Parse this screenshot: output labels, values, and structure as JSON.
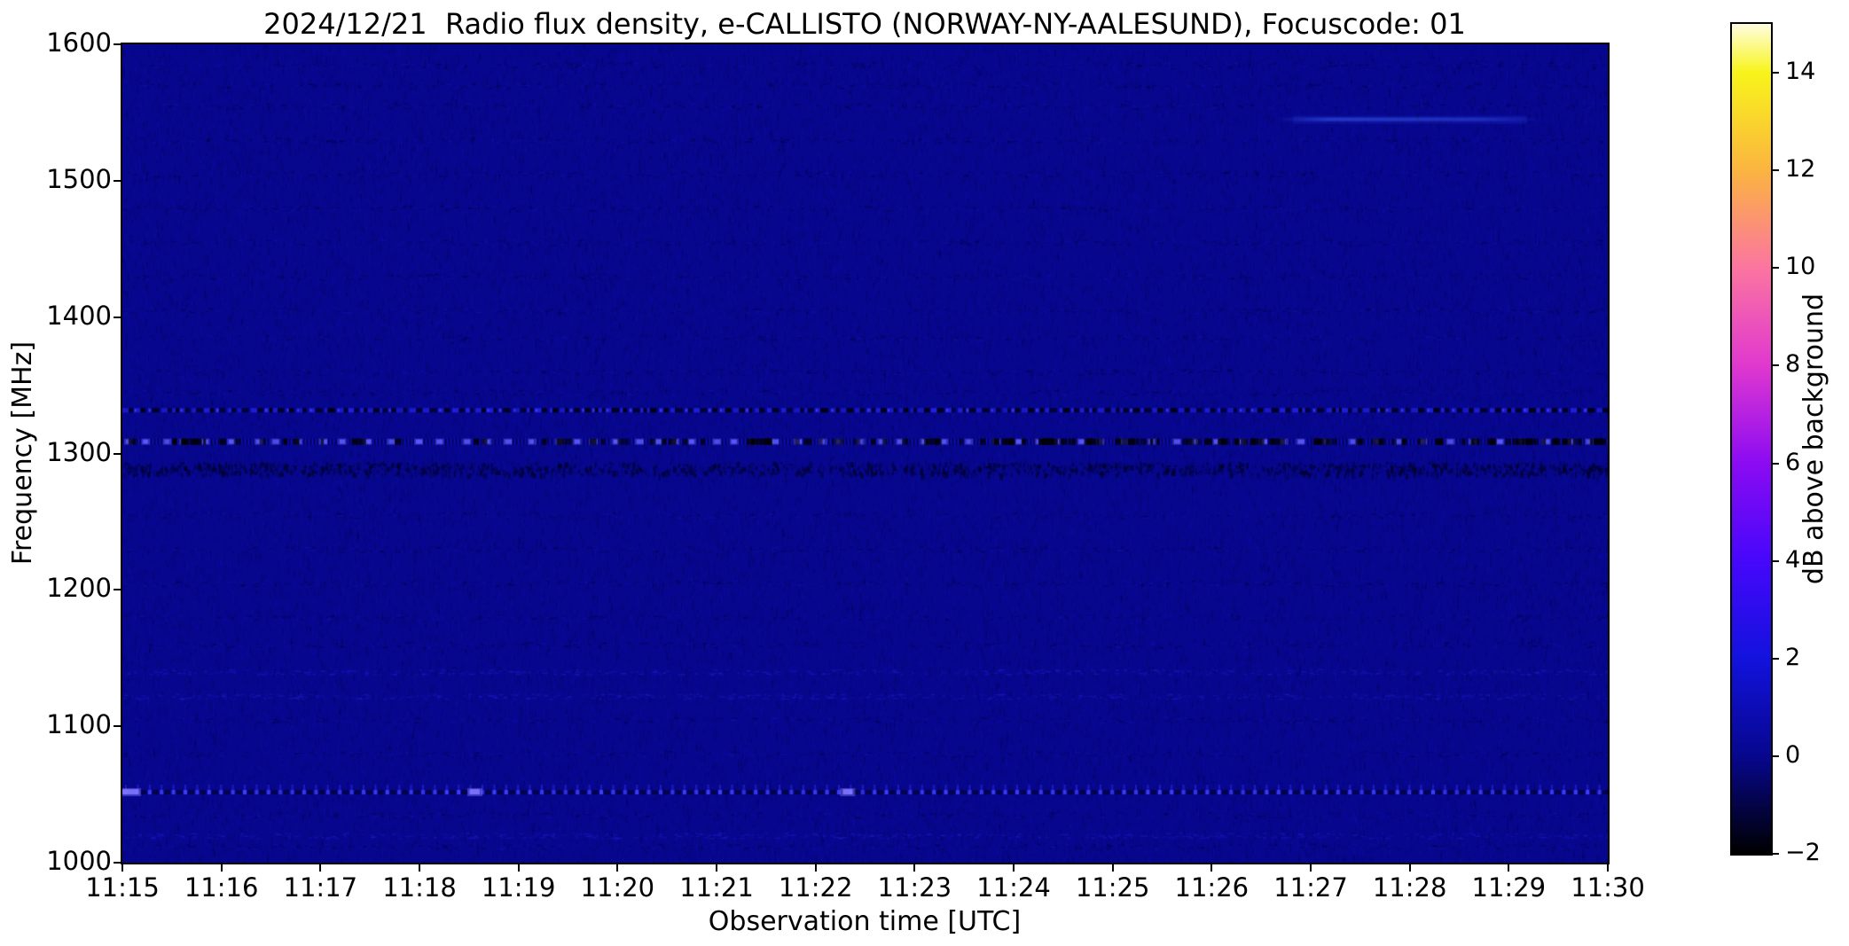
{
  "chart_data": {
    "type": "heatmap",
    "title": "2024/12/21  Radio flux density, e-CALLISTO (NORWAY-NY-AALESUND), Focuscode: 01",
    "xlabel": "Observation time [UTC]",
    "ylabel": "Frequency [MHz]",
    "x_ticks": [
      "11:15",
      "11:16",
      "11:17",
      "11:18",
      "11:19",
      "11:20",
      "11:21",
      "11:22",
      "11:23",
      "11:24",
      "11:25",
      "11:26",
      "11:27",
      "11:28",
      "11:29",
      "11:30"
    ],
    "y_ticks": [
      1000,
      1100,
      1200,
      1300,
      1400,
      1500,
      1600
    ],
    "time_range_utc": [
      "11:15",
      "11:30"
    ],
    "freq_range_mhz": [
      1000,
      1600
    ],
    "grid": false,
    "background_level_db": 0,
    "background_color": "#07078e",
    "colorbar": {
      "label": "dB above background",
      "range_db": [
        -2,
        15
      ],
      "ticks": [
        {
          "value": 14,
          "label": "14"
        },
        {
          "value": 12,
          "label": "12"
        },
        {
          "value": 10,
          "label": "10"
        },
        {
          "value": 8,
          "label": "8"
        },
        {
          "value": 6,
          "label": "6"
        },
        {
          "value": 4,
          "label": "4"
        },
        {
          "value": 2,
          "label": "2"
        },
        {
          "value": 0,
          "label": "0"
        },
        {
          "value": -2,
          "label": "−2"
        }
      ],
      "colormap_name": "gnuplot2-like (black-blue-violet-magenta-salmon-yellow-white)",
      "stops": [
        {
          "value": -2,
          "color": "#000000"
        },
        {
          "value": 0,
          "color": "#07078e"
        },
        {
          "value": 2,
          "color": "#1212dd"
        },
        {
          "value": 4,
          "color": "#4607fb"
        },
        {
          "value": 6,
          "color": "#8b0bf2"
        },
        {
          "value": 8,
          "color": "#e038cf"
        },
        {
          "value": 10,
          "color": "#fb75a0"
        },
        {
          "value": 12,
          "color": "#fbb440"
        },
        {
          "value": 14,
          "color": "#f8f41a"
        },
        {
          "value": 15,
          "color": "#fffde0"
        }
      ]
    },
    "features": [
      {
        "type": "rfi-dashed-line",
        "freq_mhz": 1332,
        "intensity_db": 2,
        "appearance": "alternating bright-blue and black dashes across full time range"
      },
      {
        "type": "rfi-strong-line",
        "freq_mhz": 1309,
        "intensity_db": 3,
        "appearance": "finely striped line with periodic bright blue blobs; more black gaps from 11:26 to 11:30"
      },
      {
        "type": "dark-mottled-band",
        "freq_mhz": 1290,
        "intensity_db": -1,
        "appearance": "darker mottled band just below 1300 MHz"
      },
      {
        "type": "pulsed-rfi-line",
        "freq_mhz": 1052,
        "intensity_db": 3,
        "appearance": "regular bright pulses with small upward ticks",
        "burst_fracs": [
          0.0,
          0.234,
          0.485
        ]
      },
      {
        "type": "faint-smear",
        "freq_mhz": 1545,
        "intensity_db": 1.5,
        "time_start": "11:27",
        "time_end": "11:29",
        "appearance": "faint brighter-blue horizontal smear"
      },
      {
        "type": "faint-speckle-row",
        "freq_mhz": 1140,
        "intensity_db": 0.8
      },
      {
        "type": "faint-speckle-row",
        "freq_mhz": 1122,
        "intensity_db": 0.6
      },
      {
        "type": "faint-speckle-row",
        "freq_mhz": 1020,
        "intensity_db": 0.6
      }
    ],
    "noise_band_freqs_mhz": [
      1585,
      1570,
      1555,
      1530,
      1505,
      1480,
      1455,
      1430,
      1405,
      1385,
      1360,
      1345,
      1255,
      1230,
      1205,
      1180,
      1160,
      1105,
      1080,
      1035,
      1012
    ]
  }
}
